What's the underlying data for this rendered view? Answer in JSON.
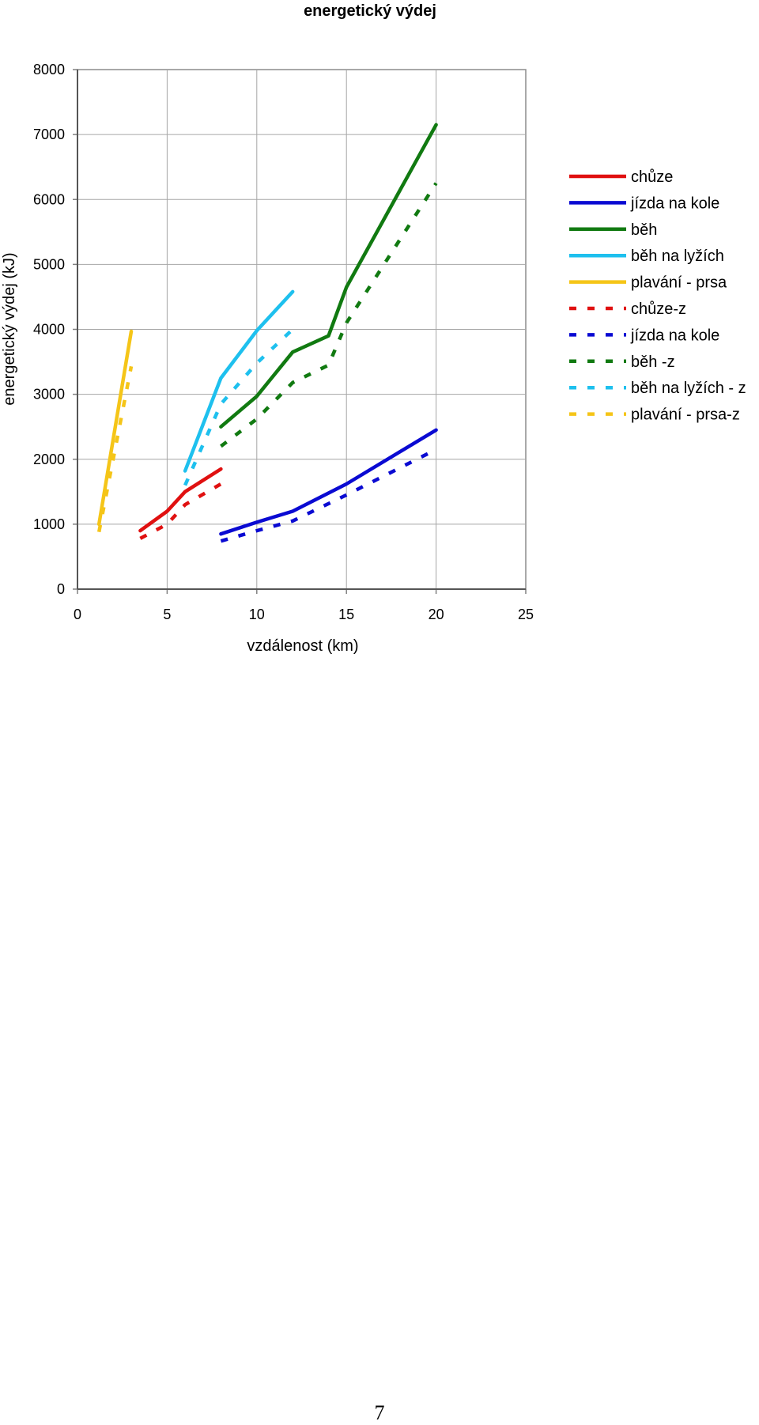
{
  "page": {
    "number": "7"
  },
  "chart_data": {
    "type": "line",
    "title": "energetický výdej",
    "xlabel": "vzdálenost (km)",
    "ylabel": "energetický výdej (kJ)",
    "xlim": [
      0,
      25
    ],
    "ylim": [
      0,
      8000
    ],
    "xticks": [
      0,
      5,
      10,
      15,
      20,
      25
    ],
    "yticks": [
      0,
      1000,
      2000,
      3000,
      4000,
      5000,
      6000,
      7000,
      8000
    ],
    "grid": true,
    "legend_position": "right",
    "series": [
      {
        "name": "chůze",
        "color": "#e01010",
        "dashed": false,
        "points": [
          [
            3.5,
            900
          ],
          [
            5,
            1200
          ],
          [
            6,
            1500
          ],
          [
            8,
            1850
          ]
        ]
      },
      {
        "name": "jízda na kole",
        "color": "#0a0ad2",
        "dashed": false,
        "points": [
          [
            8,
            850
          ],
          [
            10,
            1030
          ],
          [
            12,
            1200
          ],
          [
            15,
            1620
          ],
          [
            20,
            2450
          ]
        ]
      },
      {
        "name": "běh",
        "color": "#117a11",
        "dashed": false,
        "points": [
          [
            8,
            2500
          ],
          [
            10,
            2970
          ],
          [
            12,
            3650
          ],
          [
            14,
            3900
          ],
          [
            15,
            4650
          ],
          [
            20,
            7150
          ]
        ]
      },
      {
        "name": "běh na lyžích",
        "color": "#1ec0ee",
        "dashed": false,
        "points": [
          [
            6,
            1820
          ],
          [
            8,
            3250
          ],
          [
            10,
            3980
          ],
          [
            12,
            4580
          ]
        ]
      },
      {
        "name": "plavání - prsa",
        "color": "#f5c518",
        "dashed": false,
        "points": [
          [
            1.2,
            1000
          ],
          [
            3,
            3970
          ]
        ]
      },
      {
        "name": "chůze-z",
        "color": "#e01010",
        "dashed": true,
        "points": [
          [
            3.5,
            780
          ],
          [
            5,
            1000
          ],
          [
            6,
            1300
          ],
          [
            8,
            1620
          ]
        ]
      },
      {
        "name": "jízda na kole",
        "color": "#0a0ad2",
        "dashed": true,
        "points": [
          [
            8,
            740
          ],
          [
            10,
            900
          ],
          [
            12,
            1050
          ],
          [
            15,
            1450
          ],
          [
            20,
            2150
          ]
        ]
      },
      {
        "name": "běh -z",
        "color": "#117a11",
        "dashed": true,
        "points": [
          [
            8,
            2200
          ],
          [
            10,
            2620
          ],
          [
            12,
            3180
          ],
          [
            14,
            3450
          ],
          [
            15,
            4100
          ],
          [
            20,
            6250
          ]
        ]
      },
      {
        "name": "běh na lyžích - z",
        "color": "#1ec0ee",
        "dashed": true,
        "points": [
          [
            6,
            1600
          ],
          [
            8,
            2850
          ],
          [
            10,
            3480
          ],
          [
            12,
            4000
          ]
        ]
      },
      {
        "name": "plavání - prsa-z",
        "color": "#f5c518",
        "dashed": true,
        "points": [
          [
            1.2,
            880
          ],
          [
            3,
            3430
          ]
        ]
      }
    ]
  }
}
